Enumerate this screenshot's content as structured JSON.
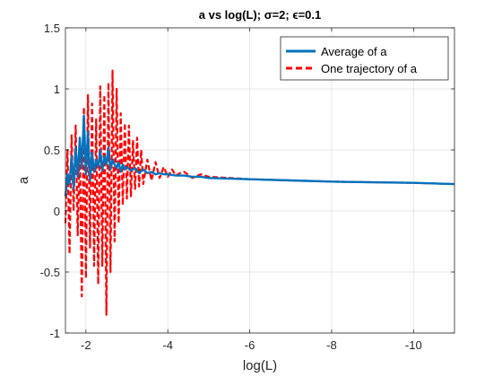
{
  "chart_data": {
    "type": "line",
    "title": "a vs log(L); σ=2; ϵ=0.1",
    "xlabel": "log(L)",
    "ylabel": "a",
    "xlim": [
      -1.5,
      -11
    ],
    "x_direction": "reversed",
    "ylim": [
      -1,
      1.5
    ],
    "x_ticks": [
      -2,
      -4,
      -6,
      -8,
      -10
    ],
    "y_ticks": [
      -1,
      -0.5,
      0,
      0.5,
      1,
      1.5
    ],
    "x_tick_labels": [
      "-2",
      "-4",
      "-6",
      "-8",
      "-10"
    ],
    "y_tick_labels": [
      "-1",
      "-0.5",
      "0",
      "0.5",
      "1",
      "1.5"
    ],
    "grid": true,
    "legend_position": "top-right",
    "series": [
      {
        "name": "Average of a",
        "color": "#0072BD",
        "style": "solid",
        "x": [
          -1.5,
          -1.55,
          -1.6,
          -1.65,
          -1.7,
          -1.75,
          -1.8,
          -1.85,
          -1.9,
          -1.95,
          -2.0,
          -2.05,
          -2.1,
          -2.15,
          -2.2,
          -2.25,
          -2.3,
          -2.35,
          -2.4,
          -2.45,
          -2.5,
          -2.55,
          -2.6,
          -2.65,
          -2.7,
          -2.75,
          -2.8,
          -2.85,
          -2.9,
          -2.95,
          -3.0,
          -3.1,
          -3.2,
          -3.3,
          -3.4,
          -3.5,
          -3.6,
          -3.7,
          -3.8,
          -3.9,
          -4.0,
          -4.2,
          -4.4,
          -4.6,
          -4.8,
          -5.0,
          -5.5,
          -6.0,
          -7.0,
          -8.0,
          -9.0,
          -10.0,
          -11.0
        ],
        "values": [
          0.12,
          0.3,
          0.22,
          0.45,
          0.18,
          0.52,
          0.28,
          0.6,
          0.35,
          0.78,
          0.3,
          0.65,
          0.25,
          0.48,
          0.32,
          0.42,
          0.36,
          0.5,
          0.33,
          0.45,
          0.38,
          0.52,
          0.34,
          0.42,
          0.38,
          0.35,
          0.4,
          0.32,
          0.38,
          0.34,
          0.36,
          0.33,
          0.35,
          0.31,
          0.34,
          0.31,
          0.32,
          0.3,
          0.31,
          0.3,
          0.3,
          0.29,
          0.29,
          0.28,
          0.28,
          0.27,
          0.265,
          0.26,
          0.25,
          0.24,
          0.235,
          0.23,
          0.22
        ]
      },
      {
        "name": "One trajectory of a",
        "color": "#FF0000",
        "style": "dashed",
        "x": [
          -1.5,
          -1.55,
          -1.6,
          -1.65,
          -1.7,
          -1.75,
          -1.8,
          -1.85,
          -1.9,
          -1.95,
          -2.0,
          -2.05,
          -2.1,
          -2.15,
          -2.2,
          -2.25,
          -2.3,
          -2.35,
          -2.4,
          -2.45,
          -2.5,
          -2.55,
          -2.6,
          -2.65,
          -2.7,
          -2.75,
          -2.8,
          -2.85,
          -2.9,
          -2.95,
          -3.0,
          -3.05,
          -3.1,
          -3.15,
          -3.2,
          -3.25,
          -3.3,
          -3.35,
          -3.4,
          -3.5,
          -3.6,
          -3.7,
          -3.8,
          -3.9,
          -4.0,
          -4.1,
          -4.2,
          -4.3,
          -4.4,
          -4.6,
          -4.8,
          -5.0,
          -5.5,
          -6.0,
          -7.0,
          -8.0,
          -9.0,
          -10.0,
          -11.0
        ],
        "values": [
          -0.1,
          0.5,
          -0.35,
          0.62,
          0.0,
          0.7,
          -0.2,
          0.55,
          -0.7,
          0.85,
          -0.55,
          0.95,
          -0.3,
          0.88,
          -0.45,
          0.75,
          -0.6,
          1.02,
          -0.45,
          0.95,
          -0.85,
          1.05,
          -0.5,
          1.15,
          -0.25,
          1.0,
          -0.1,
          0.8,
          0.05,
          0.72,
          0.1,
          0.7,
          0.12,
          0.58,
          0.18,
          0.6,
          0.2,
          0.5,
          0.22,
          0.42,
          0.25,
          0.4,
          0.27,
          0.36,
          0.28,
          0.34,
          0.29,
          0.31,
          0.32,
          0.27,
          0.3,
          0.28,
          0.27,
          0.26,
          0.25,
          0.24,
          0.235,
          0.23,
          0.22
        ]
      }
    ]
  }
}
